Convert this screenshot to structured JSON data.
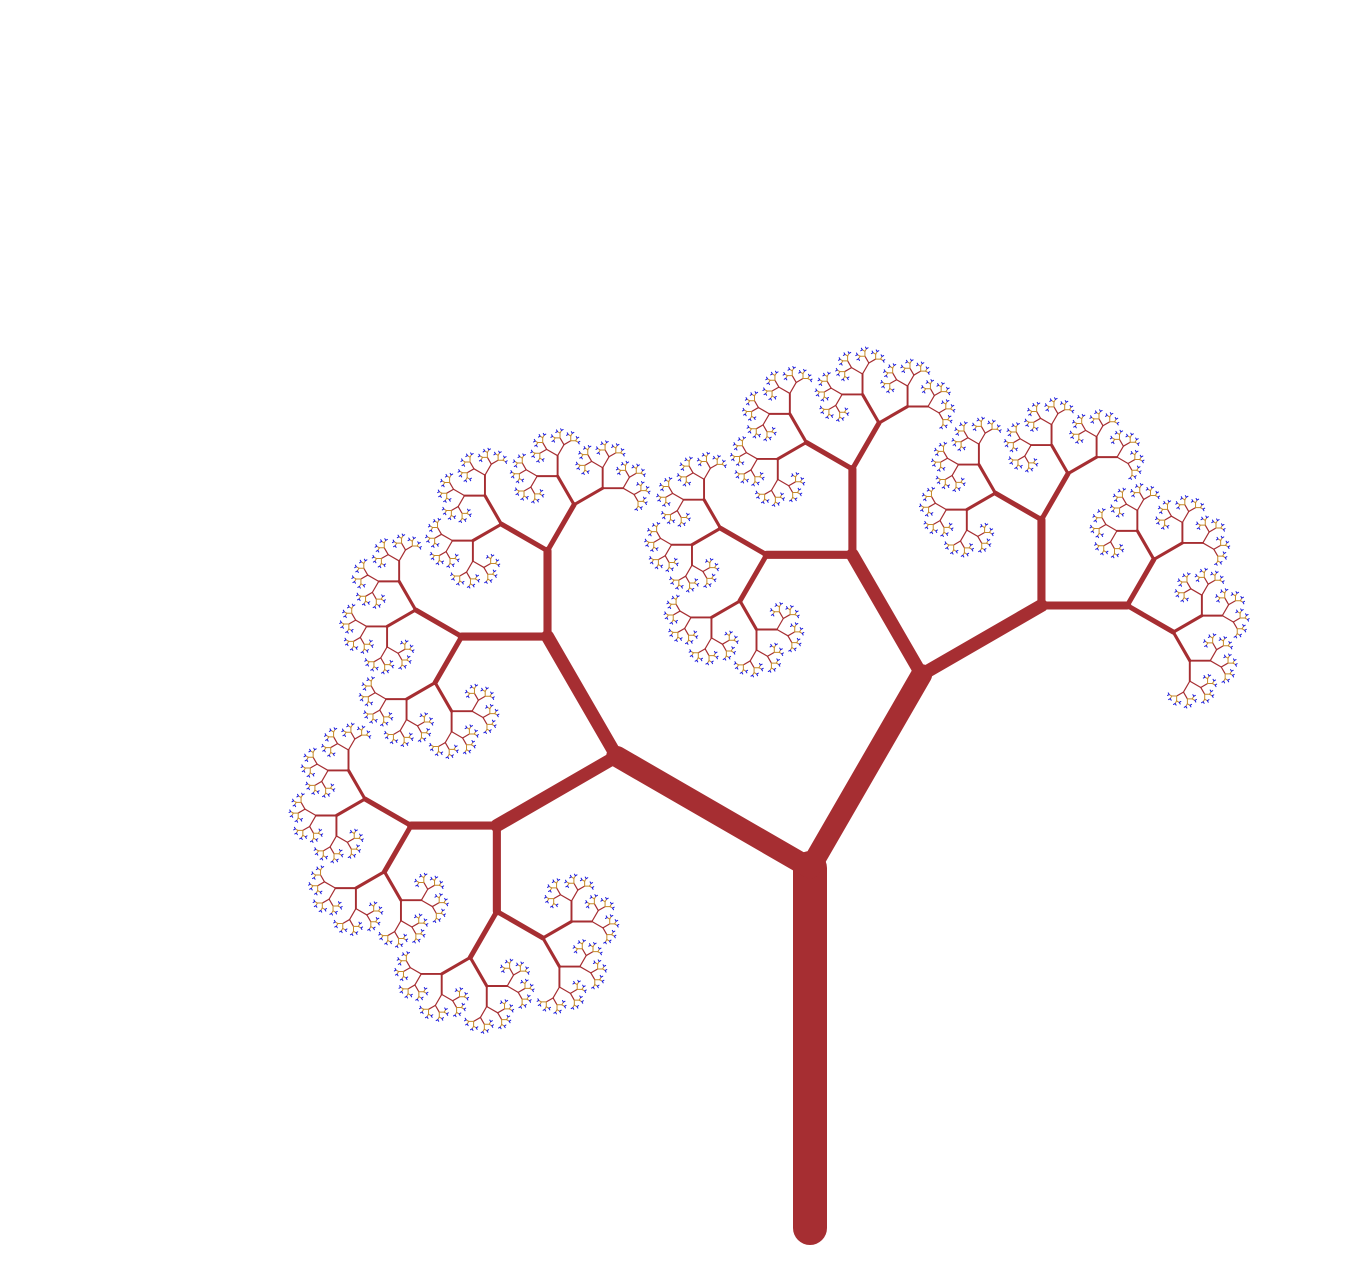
{
  "fractal_tree": {
    "branch_color": "#a62e32",
    "leaf_color": "#1a1adf",
    "twig_color": "#c58a2a",
    "background_color": "#ffffff"
  }
}
